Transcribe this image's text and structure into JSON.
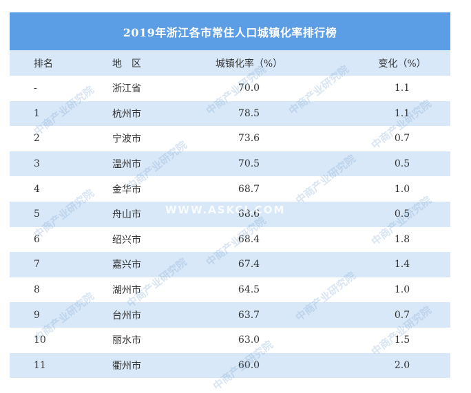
{
  "title": "2019年浙江各市常住人口城镇化率排行榜",
  "headers": {
    "rank": "排名",
    "region": "地　区",
    "rate": "城镇化率（%）",
    "change": "变化（%）"
  },
  "rows": [
    {
      "rank": "-",
      "region": "浙江省",
      "rate": "70.0",
      "change": "1.1"
    },
    {
      "rank": "1",
      "region": "杭州市",
      "rate": "78.5",
      "change": "1.1"
    },
    {
      "rank": "2",
      "region": "宁波市",
      "rate": "73.6",
      "change": "0.7"
    },
    {
      "rank": "3",
      "region": "温州市",
      "rate": "70.5",
      "change": "0.5"
    },
    {
      "rank": "4",
      "region": "金华市",
      "rate": "68.7",
      "change": "1.0"
    },
    {
      "rank": "5",
      "region": "舟山市",
      "rate": "68.6",
      "change": "0.5"
    },
    {
      "rank": "6",
      "region": "绍兴市",
      "rate": "68.4",
      "change": "1.8"
    },
    {
      "rank": "7",
      "region": "嘉兴市",
      "rate": "67.4",
      "change": "1.4"
    },
    {
      "rank": "8",
      "region": "湖州市",
      "rate": "64.5",
      "change": "1.0"
    },
    {
      "rank": "9",
      "region": "台州市",
      "rate": "63.7",
      "change": "0.7"
    },
    {
      "rank": "10",
      "region": "丽水市",
      "rate": "63.0",
      "change": "1.5"
    },
    {
      "rank": "11",
      "region": "衢州市",
      "rate": "60.0",
      "change": "2.0"
    }
  ],
  "watermark": {
    "text": "中商产业研究院",
    "url": "WWW.ASKCI.COM"
  },
  "colors": {
    "title_bg": "#5b9ee6",
    "stripe_bg": "#d8e8f8",
    "text": "#333333"
  }
}
